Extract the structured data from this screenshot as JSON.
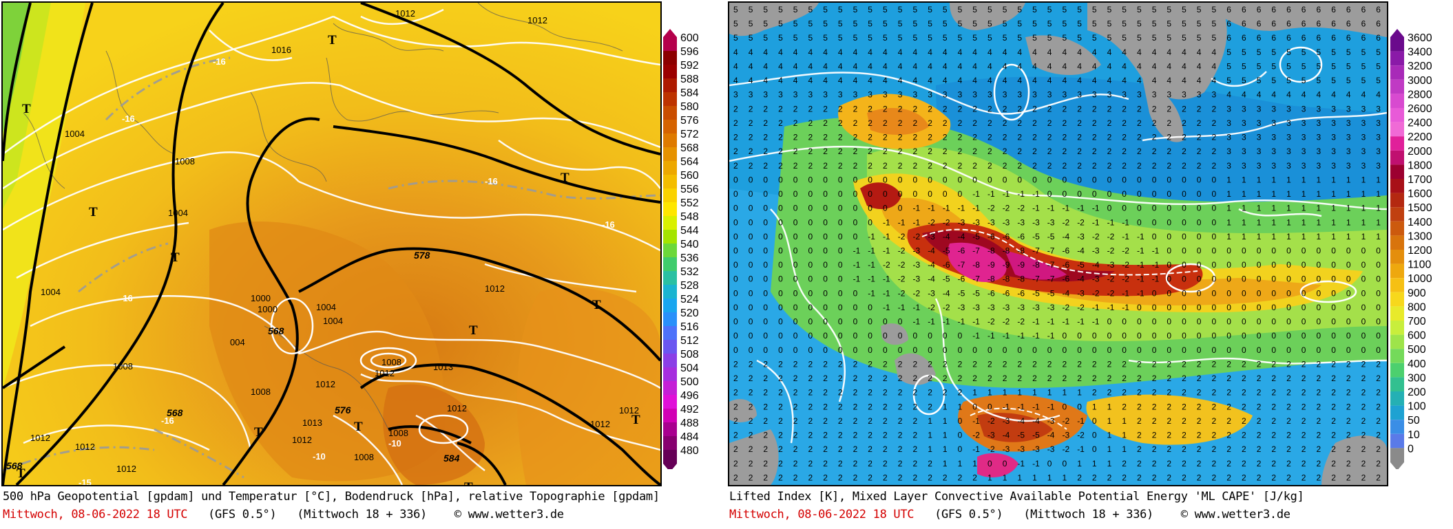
{
  "left_map": {
    "caption_line1": "500 hPa Geopotential [gpdam] und Temperatur [°C], Bodendruck [hPa], relative Topographie [gpdam]",
    "date": "Mittwoch, 08-06-2022  18 UTC",
    "model": "(GFS 0.5°)",
    "run": "(Mittwoch 18 + 336)",
    "site": "© www.wetter3.de",
    "legend_values": [
      "600",
      "596",
      "592",
      "588",
      "584",
      "580",
      "576",
      "572",
      "568",
      "564",
      "560",
      "556",
      "552",
      "548",
      "544",
      "540",
      "536",
      "532",
      "528",
      "524",
      "520",
      "516",
      "512",
      "508",
      "504",
      "500",
      "496",
      "492",
      "488",
      "484",
      "480"
    ],
    "legend_colors": [
      "#b4004b",
      "#8c0000",
      "#9b0000",
      "#ae1a00",
      "#bd3300",
      "#c94d00",
      "#d56300",
      "#de7a00",
      "#e69200",
      "#eda800",
      "#f4bd00",
      "#fad200",
      "#ffe600",
      "#d9f000",
      "#a4e400",
      "#6cd83a",
      "#3fcc6c",
      "#2ac0a2",
      "#1ab4d0",
      "#19a6ef",
      "#2990fa",
      "#4d72fa",
      "#6a56f0",
      "#8a3fe6",
      "#a62ede",
      "#c41fd6",
      "#e010d8",
      "#d100b4",
      "#a8008f",
      "#87006f",
      "#650056"
    ],
    "pressure_labels": [
      "1012",
      "1016",
      "1004",
      "1008",
      "1004",
      "1004",
      "1000",
      "1000",
      "1004",
      "1004",
      "1008",
      "1012",
      "1012",
      "1013",
      "1012",
      "1008",
      "1012",
      "1008",
      "1012",
      "1012",
      "1012",
      "1012",
      "1012",
      "1012",
      "1008",
      "1008"
    ],
    "geopotential_labels": [
      "568",
      "576",
      "578",
      "568",
      "584",
      "568"
    ],
    "temp_labels": [
      "-16",
      "-16",
      "-16",
      "-16",
      "-16",
      "-16",
      "-10",
      "-15",
      "-10"
    ],
    "t_marks": [
      "T",
      "T",
      "T",
      "T",
      "T",
      "T",
      "T",
      "T",
      "T",
      "T",
      "T",
      "T"
    ]
  },
  "right_map": {
    "caption_line1": "Lifted Index [K], Mixed Layer Convective Available Potential Energy 'ML CAPE' [J/kg]",
    "date": "Mittwoch, 08-06-2022  18 UTC",
    "model": "(GFS 0.5°)",
    "run": "(Mittwoch 18 + 336)",
    "site": "© www.wetter3.de",
    "legend_values": [
      "3600",
      "3400",
      "3200",
      "3000",
      "2800",
      "2600",
      "2400",
      "2200",
      "2000",
      "1800",
      "1700",
      "1600",
      "1500",
      "1400",
      "1300",
      "1200",
      "1100",
      "1000",
      "900",
      "800",
      "700",
      "600",
      "500",
      "400",
      "300",
      "200",
      "100",
      "50",
      "10",
      "0"
    ],
    "legend_colors": [
      "#6a0a8c",
      "#8a1aa8",
      "#a82ab8",
      "#c03ac4",
      "#d84ad0",
      "#e85ad8",
      "#f06ad6",
      "#e0209a",
      "#c01070",
      "#9c0030",
      "#a81018",
      "#b42810",
      "#c04010",
      "#cc5a0e",
      "#d8740c",
      "#e48e0c",
      "#eea80e",
      "#f6c014",
      "#f7d81c",
      "#e8ea2a",
      "#c8ee3c",
      "#9ee44a",
      "#74da5a",
      "#4cd06e",
      "#32c090",
      "#24b0b4",
      "#1ea2d2",
      "#3a8ee6",
      "#5a7ae8",
      "#8a8a8a"
    ]
  }
}
